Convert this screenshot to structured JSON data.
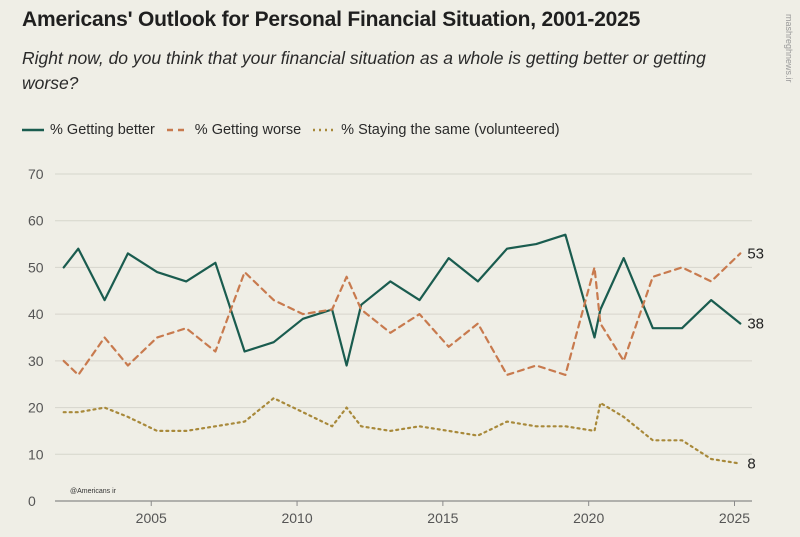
{
  "title": "Americans' Outlook for Personal Financial Situation, 2001-2025",
  "subtitle": "Right now, do you think that your financial situation as a whole is getting better or getting worse?",
  "watermark": "mashreghnews.ir",
  "badge": "@Americans ir",
  "legend": [
    {
      "label": "% Getting better",
      "color": "#1a5c4f",
      "dash": ""
    },
    {
      "label": "% Getting worse",
      "color": "#c87a4e",
      "dash": "6,5"
    },
    {
      "label": "% Staying the same (volunteered)",
      "color": "#a8893a",
      "dash": "2,4"
    }
  ],
  "chart_data": {
    "type": "line",
    "title": "Americans' Outlook for Personal Financial Situation, 2001-2025",
    "xlim": [
      2001.7,
      2025.6
    ],
    "ylim": [
      0,
      70
    ],
    "yticks": [
      0,
      10,
      20,
      30,
      40,
      50,
      60,
      70
    ],
    "xticks": [
      2005,
      2010,
      2015,
      2020,
      2025
    ],
    "grid": true,
    "series": [
      {
        "name": "% Getting better",
        "color": "#1a5c4f",
        "dash": "",
        "end_label": "38",
        "x": [
          2002.0,
          2002.5,
          2003.4,
          2004.2,
          2005.2,
          2006.2,
          2007.2,
          2008.2,
          2009.2,
          2010.2,
          2011.2,
          2011.7,
          2012.2,
          2013.2,
          2014.2,
          2015.2,
          2016.2,
          2017.2,
          2018.2,
          2019.2,
          2020.2,
          2020.4,
          2021.2,
          2022.2,
          2023.2,
          2024.2,
          2025.2
        ],
        "y": [
          50,
          54,
          43,
          53,
          49,
          47,
          51,
          32,
          34,
          39,
          41,
          29,
          42,
          47,
          43,
          52,
          47,
          54,
          55,
          57,
          35,
          41,
          52,
          37,
          37,
          43,
          38
        ]
      },
      {
        "name": "% Getting worse",
        "color": "#c87a4e",
        "dash": "6,5",
        "end_label": "53",
        "x": [
          2002.0,
          2002.5,
          2003.4,
          2004.2,
          2005.2,
          2006.2,
          2007.2,
          2008.2,
          2009.2,
          2010.2,
          2011.2,
          2011.7,
          2012.2,
          2013.2,
          2014.2,
          2015.2,
          2016.2,
          2017.2,
          2018.2,
          2019.2,
          2020.2,
          2020.4,
          2021.2,
          2022.2,
          2023.2,
          2024.2,
          2025.2
        ],
        "y": [
          30,
          27,
          35,
          29,
          35,
          37,
          32,
          49,
          43,
          40,
          41,
          48,
          41,
          36,
          40,
          33,
          38,
          27,
          29,
          27,
          50,
          38,
          30,
          48,
          50,
          47,
          53
        ]
      },
      {
        "name": "% Staying the same (volunteered)",
        "color": "#a8893a",
        "dash": "2,4",
        "end_label": "8",
        "x": [
          2002.0,
          2002.5,
          2003.4,
          2004.2,
          2005.2,
          2006.2,
          2007.2,
          2008.2,
          2009.2,
          2010.2,
          2011.2,
          2011.7,
          2012.2,
          2013.2,
          2014.2,
          2015.2,
          2016.2,
          2017.2,
          2018.2,
          2019.2,
          2020.2,
          2020.4,
          2021.2,
          2022.2,
          2023.2,
          2024.2,
          2025.2
        ],
        "y": [
          19,
          19,
          20,
          18,
          15,
          15,
          16,
          17,
          22,
          19,
          16,
          20,
          16,
          15,
          16,
          15,
          14,
          17,
          16,
          16,
          15,
          21,
          18,
          13,
          13,
          9,
          8
        ]
      }
    ]
  }
}
